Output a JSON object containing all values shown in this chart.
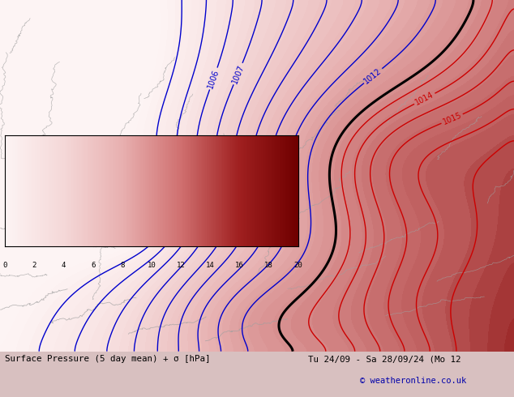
{
  "title_left": "Surface Pressure (5 day mean) + σ [hPa]",
  "title_right": "Tu 24/09 - Sa 28/09/24 (Mo 12",
  "copyright": "© weatheronline.co.uk",
  "colorbar_values": [
    0,
    2,
    4,
    6,
    8,
    10,
    12,
    14,
    16,
    18,
    20
  ],
  "blue_contour_color": "#0000cc",
  "red_contour_color": "#cc0000",
  "black_contour_color": "#000000",
  "border_color": "#a0a0a0",
  "fig_bg": "#d8c0c0",
  "bar_bg": "#d8d8d8",
  "figsize": [
    6.34,
    4.9
  ],
  "dpi": 100
}
